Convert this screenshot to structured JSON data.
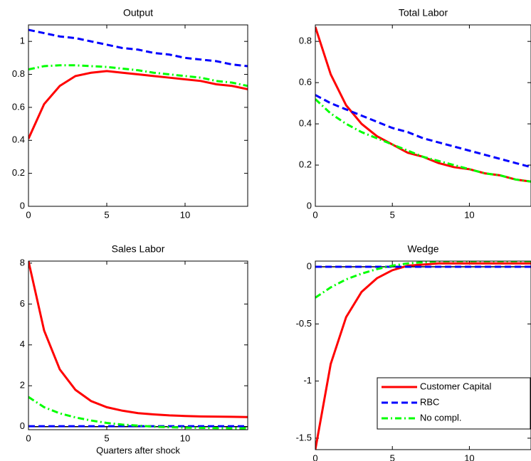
{
  "chart_data": [
    {
      "type": "line",
      "title": "Output",
      "x": [
        0,
        1,
        2,
        3,
        4,
        5,
        6,
        7,
        8,
        9,
        10,
        11,
        12,
        13,
        14
      ],
      "xlim": [
        0,
        14
      ],
      "xticks": [
        0,
        5,
        10
      ],
      "ylim": [
        0,
        1.1
      ],
      "yticks": [
        0,
        0.2,
        0.4,
        0.6,
        0.8,
        1
      ],
      "series": [
        {
          "color": "#ff0000",
          "dash": "solid",
          "values": [
            0.41,
            0.62,
            0.73,
            0.79,
            0.81,
            0.82,
            0.81,
            0.8,
            0.79,
            0.78,
            0.77,
            0.76,
            0.74,
            0.73,
            0.71
          ]
        },
        {
          "color": "#0000ff",
          "dash": "dashed",
          "values": [
            1.07,
            1.05,
            1.03,
            1.02,
            1.0,
            0.98,
            0.96,
            0.95,
            0.93,
            0.92,
            0.9,
            0.89,
            0.88,
            0.86,
            0.85
          ]
        },
        {
          "color": "#00ff00",
          "dash": "dashdot",
          "values": [
            0.83,
            0.85,
            0.855,
            0.855,
            0.85,
            0.845,
            0.835,
            0.825,
            0.81,
            0.8,
            0.79,
            0.78,
            0.76,
            0.75,
            0.73
          ]
        }
      ]
    },
    {
      "type": "line",
      "title": "Total Labor",
      "x": [
        0,
        1,
        2,
        3,
        4,
        5,
        6,
        7,
        8,
        9,
        10,
        11,
        12,
        13,
        14
      ],
      "xlim": [
        0,
        14
      ],
      "xticks": [
        0,
        5,
        10
      ],
      "ylim": [
        0,
        0.88
      ],
      "yticks": [
        0,
        0.2,
        0.4,
        0.6,
        0.8
      ],
      "series": [
        {
          "color": "#ff0000",
          "dash": "solid",
          "values": [
            0.87,
            0.64,
            0.49,
            0.4,
            0.34,
            0.3,
            0.26,
            0.24,
            0.21,
            0.19,
            0.18,
            0.16,
            0.15,
            0.13,
            0.12
          ]
        },
        {
          "color": "#0000ff",
          "dash": "dashed",
          "values": [
            0.54,
            0.5,
            0.47,
            0.44,
            0.41,
            0.38,
            0.36,
            0.33,
            0.31,
            0.29,
            0.27,
            0.25,
            0.23,
            0.21,
            0.19
          ]
        },
        {
          "color": "#00ff00",
          "dash": "dashdot",
          "values": [
            0.52,
            0.45,
            0.4,
            0.36,
            0.33,
            0.3,
            0.27,
            0.24,
            0.22,
            0.2,
            0.18,
            0.16,
            0.15,
            0.13,
            0.12
          ]
        }
      ]
    },
    {
      "type": "line",
      "title": "Sales Labor",
      "x_label": "Quarters after shock",
      "x": [
        0,
        1,
        2,
        3,
        4,
        5,
        6,
        7,
        8,
        9,
        10,
        11,
        12,
        13,
        14
      ],
      "xlim": [
        0,
        14
      ],
      "xticks": [
        0,
        5,
        10
      ],
      "ylim": [
        -0.15,
        8.1
      ],
      "yticks": [
        0,
        2,
        4,
        6,
        8
      ],
      "zero_line": true,
      "series": [
        {
          "color": "#ff0000",
          "dash": "solid",
          "values": [
            8.1,
            4.7,
            2.8,
            1.8,
            1.25,
            0.95,
            0.78,
            0.66,
            0.6,
            0.55,
            0.52,
            0.5,
            0.49,
            0.48,
            0.47
          ]
        },
        {
          "color": "#0000ff",
          "dash": "dashed",
          "values": [
            0.02,
            0.02,
            0.02,
            0.02,
            0.02,
            0.02,
            0.02,
            0.02,
            0.02,
            0.02,
            0.02,
            0.02,
            0.02,
            0.02,
            0.02
          ]
        },
        {
          "color": "#00ff00",
          "dash": "dashdot",
          "values": [
            1.45,
            0.95,
            0.65,
            0.45,
            0.3,
            0.18,
            0.1,
            0.05,
            0,
            -0.03,
            -0.05,
            -0.06,
            -0.07,
            -0.08,
            -0.08
          ]
        }
      ]
    },
    {
      "type": "line",
      "title": "Wedge",
      "x": [
        0,
        1,
        2,
        3,
        4,
        5,
        6,
        7,
        8,
        9,
        10,
        11,
        12,
        13,
        14
      ],
      "xlim": [
        0,
        14
      ],
      "xticks": [
        0,
        5,
        10
      ],
      "ylim": [
        -1.6,
        0.05
      ],
      "yticks": [
        -1.5,
        -1,
        -0.5,
        0
      ],
      "zero_line": true,
      "legend": "lower right",
      "series": [
        {
          "name": "Customer Capital",
          "color": "#ff0000",
          "dash": "solid",
          "values": [
            -1.6,
            -0.85,
            -0.44,
            -0.22,
            -0.1,
            -0.03,
            0.01,
            0.02,
            0.03,
            0.03,
            0.03,
            0.03,
            0.03,
            0.03,
            0.03
          ]
        },
        {
          "name": "RBC",
          "color": "#0000ff",
          "dash": "dashed",
          "values": [
            0,
            0,
            0,
            0,
            0,
            0,
            0,
            0,
            0,
            0,
            0,
            0,
            0,
            0,
            0
          ]
        },
        {
          "name": "No compl.",
          "color": "#00ff00",
          "dash": "dashdot",
          "values": [
            -0.27,
            -0.18,
            -0.11,
            -0.06,
            -0.02,
            0.01,
            0.03,
            0.04,
            0.05,
            0.05,
            0.05,
            0.05,
            0.05,
            0.05,
            0.05
          ]
        }
      ]
    }
  ]
}
